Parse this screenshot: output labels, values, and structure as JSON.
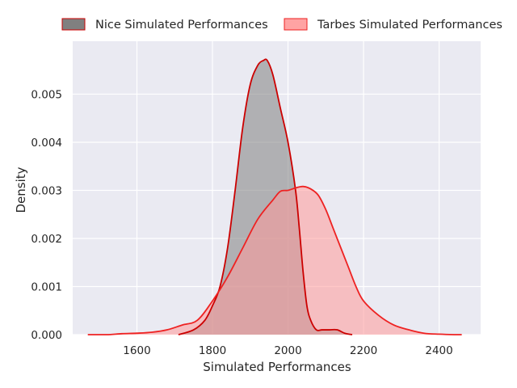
{
  "chart_data": {
    "type": "area",
    "title": "",
    "xlabel": "Simulated Performances",
    "ylabel": "Density",
    "xlim": [
      1430,
      2510
    ],
    "ylim": [
      0,
      0.0061
    ],
    "xticks": [
      1600,
      1800,
      2000,
      2200,
      2400
    ],
    "yticks": [
      0.0,
      0.001,
      0.002,
      0.003,
      0.004,
      0.005
    ],
    "ytick_labels": [
      "0.000",
      "0.001",
      "0.002",
      "0.003",
      "0.004",
      "0.005"
    ],
    "grid": true,
    "background": "#eaeaf2",
    "legend_placement": "top, outside plot, 2 columns",
    "series": [
      {
        "name": "Nice Simulated Performances",
        "fill": "#808080",
        "fill_opacity": 0.55,
        "line": "#cc0000",
        "x": [
          1710,
          1750,
          1780,
          1800,
          1820,
          1840,
          1860,
          1880,
          1900,
          1920,
          1935,
          1945,
          1960,
          1980,
          2000,
          2020,
          2030,
          2040,
          2050,
          2060,
          2075,
          2090,
          2110,
          2130,
          2150,
          2170
        ],
        "y": [
          0.0,
          0.0001,
          0.0003,
          0.0006,
          0.001,
          0.0018,
          0.003,
          0.0043,
          0.0052,
          0.0056,
          0.0057,
          0.0057,
          0.0054,
          0.0047,
          0.004,
          0.003,
          0.0022,
          0.0013,
          0.0006,
          0.0003,
          0.0001,
          0.0001,
          0.0001,
          0.0001,
          3e-05,
          0.0
        ]
      },
      {
        "name": "Tarbes Simulated Performances",
        "fill": "#ff9999",
        "fill_opacity": 0.55,
        "line": "#ee2222",
        "x": [
          1470,
          1520,
          1560,
          1600,
          1640,
          1680,
          1720,
          1760,
          1800,
          1840,
          1880,
          1920,
          1960,
          1980,
          2000,
          2020,
          2040,
          2060,
          2080,
          2100,
          2120,
          2140,
          2160,
          2180,
          2200,
          2240,
          2280,
          2320,
          2360,
          2400,
          2440,
          2460
        ],
        "y": [
          0.0,
          0.0,
          2e-05,
          3e-05,
          5e-05,
          0.0001,
          0.0002,
          0.0003,
          0.0007,
          0.0012,
          0.0018,
          0.0024,
          0.0028,
          0.00298,
          0.003,
          0.00305,
          0.00308,
          0.00303,
          0.0029,
          0.0026,
          0.0022,
          0.0018,
          0.0014,
          0.001,
          0.0007,
          0.0004,
          0.0002,
          0.0001,
          3e-05,
          1e-05,
          0.0,
          0.0
        ]
      }
    ]
  }
}
